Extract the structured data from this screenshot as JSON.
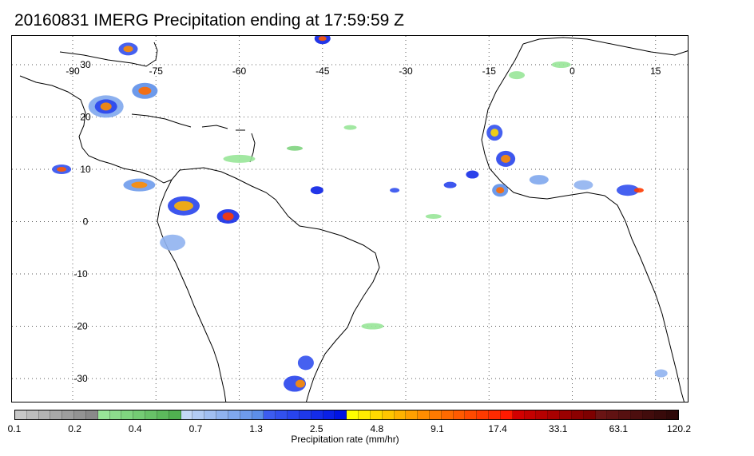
{
  "title": "20160831 IMERG Precipitation ending at 17:59:59 Z",
  "map": {
    "longitude_labels": [
      "-90",
      "-75",
      "-60",
      "-45",
      "-30",
      "-15",
      "0",
      "15"
    ],
    "latitude_labels": [
      "30",
      "20",
      "10",
      "0",
      "-10",
      "-20",
      "-30"
    ]
  },
  "colorbar": {
    "title": "Precipitation rate (mm/hr)",
    "tick_labels": [
      "0.1",
      "0.2",
      "0.4",
      "0.7",
      "1.3",
      "2.5",
      "4.8",
      "9.1",
      "17.4",
      "33.1",
      "63.1",
      "120.2"
    ],
    "colors": [
      "#c8c8c8",
      "#bdbdbd",
      "#b3b3b3",
      "#a8a8a8",
      "#9e9e9e",
      "#939393",
      "#898989",
      "#98e598",
      "#8cdc8c",
      "#80d480",
      "#74cb74",
      "#68c268",
      "#5cb95c",
      "#50b150",
      "#c3d7f5",
      "#b2cbf3",
      "#a1bff1",
      "#90b3ef",
      "#7fa7ed",
      "#6e9beb",
      "#5d8fe9",
      "#3c5cf0",
      "#3250ee",
      "#2844ec",
      "#1e38ea",
      "#142ce8",
      "#0a20e6",
      "#0014e4",
      "#ffff00",
      "#ffec00",
      "#ffd900",
      "#ffc600",
      "#ffb300",
      "#ffa000",
      "#ff8d00",
      "#ff7a00",
      "#ff6a00",
      "#ff5a00",
      "#ff4a00",
      "#ff3a00",
      "#ff2a00",
      "#ff1a00",
      "#d20000",
      "#c40000",
      "#b60000",
      "#a80000",
      "#9a0000",
      "#8c0000",
      "#7e0000",
      "#6a1414",
      "#601212",
      "#561010",
      "#4c0e0e",
      "#420c0c",
      "#380a0a",
      "#2e0808"
    ]
  }
}
